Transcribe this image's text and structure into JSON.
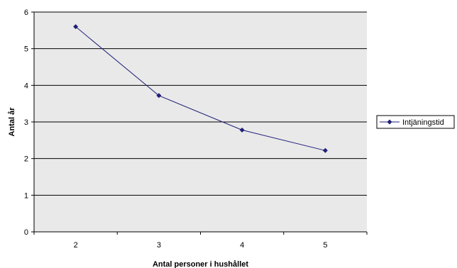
{
  "chart_data": {
    "type": "line",
    "categories": [
      "2",
      "3",
      "4",
      "5"
    ],
    "series": [
      {
        "name": "Intjäningstid",
        "values": [
          5.6,
          3.72,
          2.78,
          2.22
        ]
      }
    ],
    "title": "",
    "xlabel": "Antal personer i hushållet",
    "ylabel": "Antal år",
    "ylim": [
      0,
      6
    ],
    "yticks": [
      "0",
      "1",
      "2",
      "3",
      "4",
      "5",
      "6"
    ],
    "grid": true,
    "legend": "right",
    "colors": {
      "plot_background": "#e9e9e9",
      "series_line": "#1f1f78",
      "grid": "#000000"
    },
    "marker": "diamond"
  }
}
